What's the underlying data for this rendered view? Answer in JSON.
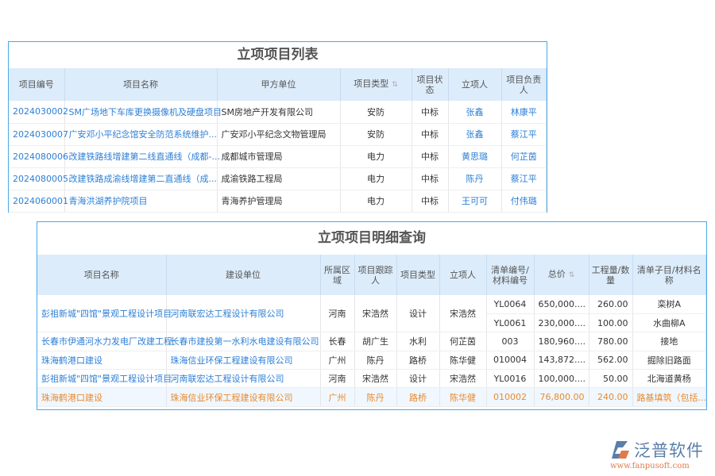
{
  "list": {
    "title": "立项项目列表",
    "headers": [
      "项目编号",
      "项目名称",
      "甲方单位",
      "项目类型",
      "项目状态",
      "立项人",
      "项目负责人"
    ],
    "rows": [
      [
        "2024030002",
        "SM广场地下车库更换摄像机及硬盘项目",
        "SM房地产开发有限公司",
        "安防",
        "中标",
        "张鑫",
        "林康平"
      ],
      [
        "2024030007",
        "广安邓小平纪念馆安全防范系统维护...",
        "广安邓小平纪念文物管理局",
        "安防",
        "中标",
        "张鑫",
        "蔡江平"
      ],
      [
        "2024080006",
        "改建铁路线增建第二线直通线（成都-...",
        "成都城市管理局",
        "电力",
        "中标",
        "黄思璐",
        "何芷茵"
      ],
      [
        "2024080005",
        "改建铁路成渝线增建第二直通线（成...",
        "成渝铁路工程局",
        "电力",
        "中标",
        "陈丹",
        "蔡江平"
      ],
      [
        "2024060001",
        "青海洪湖养护院项目",
        "青海养护管理局",
        "电力",
        "中标",
        "王可可",
        "付伟璐"
      ]
    ]
  },
  "detail": {
    "title": "立项项目明细查询",
    "headers": [
      "项目名称",
      "建设单位",
      "所属区域",
      "项目跟踪人",
      "项目类型",
      "立项人",
      "清单编号/材料编号",
      "总价",
      "工程量/数量",
      "清单子目/材料名称"
    ],
    "rows": [
      [
        "彭祖新城\"四馆\"景观工程设计项目",
        "河南联宏达工程设计有限公司",
        "河南",
        "宋浩然",
        "设计",
        "宋浩然",
        "YL0064",
        "650,000....",
        "260.00",
        "栾树A"
      ],
      [
        "",
        "",
        "",
        "",
        "",
        "",
        "YL0061",
        "230,000....",
        "100.00",
        "水曲柳A"
      ],
      [
        "长春市伊通河水力发电厂改建工程",
        "长春市建投第一水利水电建设有限公司",
        "长春",
        "胡广生",
        "水利",
        "何芷茵",
        "003",
        "180,960....",
        "780.00",
        "接地"
      ],
      [
        "珠海鹤港口建设",
        "珠海信业环保工程建设有限公司",
        "广州",
        "陈丹",
        "路桥",
        "陈华健",
        "010004",
        "143,872....",
        "562.00",
        "掘除旧路面"
      ],
      [
        "彭祖新城\"四馆\"景观工程设计项目",
        "河南联宏达工程设计有限公司",
        "河南",
        "宋浩然",
        "设计",
        "宋浩然",
        "YL0016",
        "100,000....",
        "50.00",
        "北海道黄杨"
      ],
      [
        "珠海鹤港口建设",
        "珠海信业环保工程建设有限公司",
        "广州",
        "陈丹",
        "路桥",
        "陈华健",
        "010002",
        "76,800.00",
        "240.00",
        "路基填筑（包括..."
      ]
    ]
  },
  "logo": {
    "name": "泛普软件",
    "url": "www.fanpusoft.com"
  },
  "colors": {
    "link": "#2d7fd6",
    "highlight": "#e88a2e",
    "header_bg": "#dcecfb",
    "border": "#4aa8e8"
  }
}
